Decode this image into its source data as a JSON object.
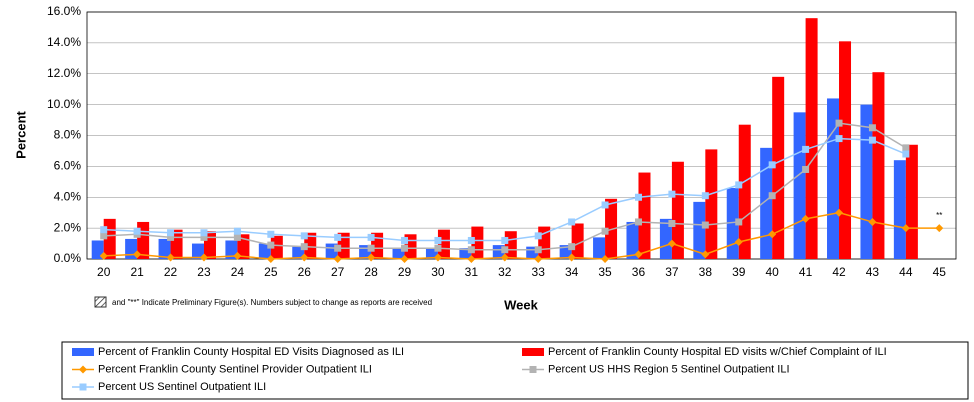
{
  "chart_data": {
    "type": "bar",
    "x_label": "Week",
    "y_label": "Percent",
    "categories": [
      "20",
      "21",
      "22",
      "23",
      "24",
      "25",
      "26",
      "27",
      "28",
      "29",
      "30",
      "31",
      "32",
      "33",
      "34",
      "35",
      "36",
      "37",
      "38",
      "39",
      "40",
      "41",
      "42",
      "43",
      "44",
      "45"
    ],
    "ylim": [
      0,
      16
    ],
    "yticks": [
      {
        "value": 0,
        "label": "0.0%"
      },
      {
        "value": 2,
        "label": "2.0%"
      },
      {
        "value": 4,
        "label": "4.0%"
      },
      {
        "value": 6,
        "label": "6.0%"
      },
      {
        "value": 8,
        "label": "8.0%"
      },
      {
        "value": 10,
        "label": "10.0%"
      },
      {
        "value": 12,
        "label": "12.0%"
      },
      {
        "value": 14,
        "label": "14.0%"
      },
      {
        "value": 16,
        "label": "16.0%"
      }
    ],
    "grid": true,
    "annotation": "**",
    "note": "and \"**\" Indicate Preliminary Figure(s).  Numbers subject to change as reports are received",
    "series": [
      {
        "name": "Percent of Franklin County Hospital ED Visits Diagnosed as ILI",
        "type": "bar",
        "color": "#3366ff",
        "values": [
          1.2,
          1.3,
          1.3,
          1.0,
          1.2,
          1.0,
          0.8,
          1.0,
          0.9,
          0.7,
          0.7,
          0.7,
          0.9,
          0.8,
          0.9,
          1.4,
          2.4,
          2.6,
          3.7,
          4.6,
          7.2,
          9.5,
          10.4,
          10.0,
          6.4,
          null
        ]
      },
      {
        "name": "Percent of Franklin County Hospital ED visits w/Chief Complaint of ILI",
        "type": "bar",
        "color": "#ff0000",
        "values": [
          2.6,
          2.4,
          1.9,
          1.8,
          1.6,
          1.5,
          1.7,
          1.7,
          1.7,
          1.6,
          1.9,
          2.1,
          1.8,
          2.1,
          2.3,
          3.9,
          5.6,
          6.3,
          7.1,
          8.7,
          11.8,
          15.6,
          14.1,
          12.1,
          7.4,
          null
        ]
      },
      {
        "name": "Percent Franklin County Sentinel Provider Outpatient ILI",
        "type": "line",
        "marker": "diamond",
        "color": "#ff9900",
        "values": [
          0.2,
          0.3,
          0.1,
          0.1,
          0.2,
          0.0,
          0.1,
          0.0,
          0.1,
          0.0,
          0.1,
          0.0,
          0.1,
          0.0,
          0.1,
          0.0,
          0.3,
          1.0,
          0.3,
          1.1,
          1.6,
          2.6,
          3.0,
          2.4,
          2.0,
          2.0
        ]
      },
      {
        "name": "Percent US HHS Region 5 Sentinel Outpatient ILI",
        "type": "line",
        "marker": "square",
        "color": "#b3b3b3",
        "values": [
          1.5,
          1.6,
          1.4,
          1.4,
          1.4,
          0.9,
          0.8,
          0.7,
          0.7,
          0.7,
          0.7,
          0.6,
          0.6,
          0.6,
          0.8,
          1.8,
          2.4,
          2.3,
          2.2,
          2.4,
          4.1,
          5.8,
          8.8,
          8.5,
          7.2,
          null
        ]
      },
      {
        "name": "Percent US Sentinel Outpatient ILI",
        "type": "line",
        "marker": "square",
        "color": "#99ccff",
        "values": [
          1.9,
          1.8,
          1.7,
          1.7,
          1.8,
          1.6,
          1.5,
          1.4,
          1.4,
          1.2,
          1.2,
          1.2,
          1.2,
          1.5,
          2.4,
          3.5,
          4.0,
          4.2,
          4.1,
          4.8,
          6.1,
          7.1,
          7.8,
          7.7,
          6.8,
          null
        ]
      }
    ]
  }
}
